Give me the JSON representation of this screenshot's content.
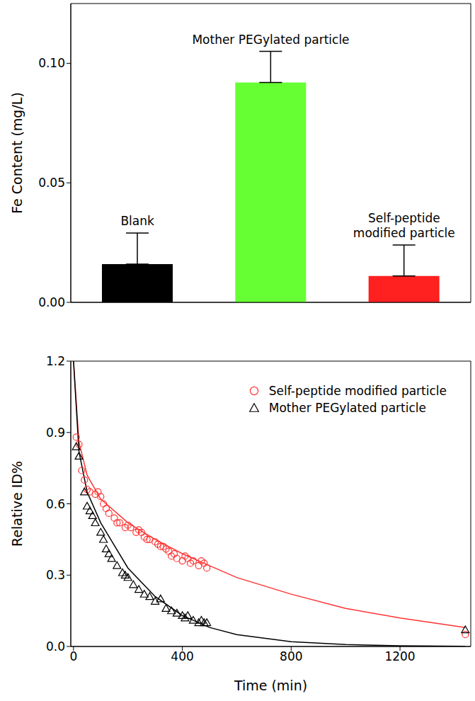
{
  "chart_data": [
    {
      "type": "bar",
      "y_label": "Fe Content (mg/L)",
      "categories": [
        "Blank",
        "Mother PEGylated particle",
        "Self-peptide modified particle"
      ],
      "values": [
        0.016,
        0.092,
        0.011
      ],
      "errors": [
        0.013,
        0.013,
        0.013
      ],
      "colors": [
        "#000000",
        "#66ff33",
        "#ff2020"
      ],
      "ylim": [
        0,
        0.125
      ],
      "yticks": [
        {
          "value": 0,
          "label": "0.00"
        },
        {
          "value": 0.05,
          "label": "0.05"
        },
        {
          "value": 0.1,
          "label": "0.10"
        }
      ],
      "tick_labels": "y",
      "grid": false
    },
    {
      "type": "scatter",
      "x_label": "Time (min)",
      "y_label": "Relative ID%",
      "xlim": [
        -10,
        1460
      ],
      "xticks": [
        0,
        400,
        800,
        1200
      ],
      "ylim": [
        0,
        1.2
      ],
      "yticks": [
        {
          "value": 0,
          "label": "0.0"
        },
        {
          "value": 0.3,
          "label": "0.3"
        },
        {
          "value": 0.6,
          "label": "0.6"
        },
        {
          "value": 0.9,
          "label": "0.9"
        },
        {
          "value": 1.2,
          "label": "1.2"
        }
      ],
      "legend": "upper right",
      "grid": false,
      "series": [
        {
          "name": "Self-peptide modified particle",
          "color": "#ff3333",
          "marker": "circle",
          "x": [
            10,
            20,
            30,
            40,
            50,
            60,
            80,
            90,
            100,
            110,
            120,
            130,
            150,
            160,
            170,
            190,
            200,
            210,
            230,
            240,
            250,
            260,
            270,
            280,
            300,
            310,
            320,
            330,
            340,
            350,
            360,
            370,
            380,
            400,
            410,
            420,
            430,
            440,
            460,
            470,
            480,
            490,
            1440
          ],
          "values": [
            0.88,
            0.85,
            0.74,
            0.7,
            0.66,
            0.65,
            0.64,
            0.65,
            0.63,
            0.6,
            0.58,
            0.56,
            0.54,
            0.52,
            0.52,
            0.5,
            0.51,
            0.5,
            0.48,
            0.49,
            0.48,
            0.46,
            0.45,
            0.45,
            0.44,
            0.43,
            0.42,
            0.42,
            0.41,
            0.4,
            0.38,
            0.39,
            0.37,
            0.36,
            0.38,
            0.37,
            0.35,
            0.36,
            0.34,
            0.36,
            0.35,
            0.33,
            0.05
          ],
          "fit_x": [
            0,
            20,
            50,
            100,
            200,
            300,
            400,
            500,
            600,
            800,
            1000,
            1200,
            1440
          ],
          "fit_values": [
            1.2,
            0.86,
            0.72,
            0.62,
            0.52,
            0.45,
            0.39,
            0.34,
            0.29,
            0.22,
            0.16,
            0.12,
            0.08
          ]
        },
        {
          "name": "Mother PEGylated particle",
          "color": "#000000",
          "marker": "triangle",
          "x": [
            10,
            20,
            40,
            50,
            60,
            70,
            80,
            100,
            110,
            120,
            130,
            140,
            160,
            180,
            190,
            200,
            220,
            240,
            260,
            280,
            300,
            320,
            340,
            360,
            380,
            400,
            410,
            420,
            440,
            460,
            470,
            480,
            490,
            1440
          ],
          "values": [
            0.84,
            0.8,
            0.65,
            0.59,
            0.57,
            0.55,
            0.52,
            0.48,
            0.45,
            0.41,
            0.39,
            0.37,
            0.34,
            0.31,
            0.3,
            0.29,
            0.26,
            0.24,
            0.22,
            0.21,
            0.19,
            0.2,
            0.16,
            0.15,
            0.14,
            0.13,
            0.12,
            0.13,
            0.11,
            0.1,
            0.11,
            0.1,
            0.1,
            0.07
          ],
          "fit_x": [
            0,
            20,
            50,
            100,
            200,
            300,
            400,
            500,
            600,
            800,
            1000,
            1200,
            1440
          ],
          "fit_values": [
            1.2,
            0.82,
            0.65,
            0.52,
            0.33,
            0.21,
            0.13,
            0.08,
            0.05,
            0.02,
            0.008,
            0.003,
            0.001
          ]
        }
      ]
    }
  ]
}
